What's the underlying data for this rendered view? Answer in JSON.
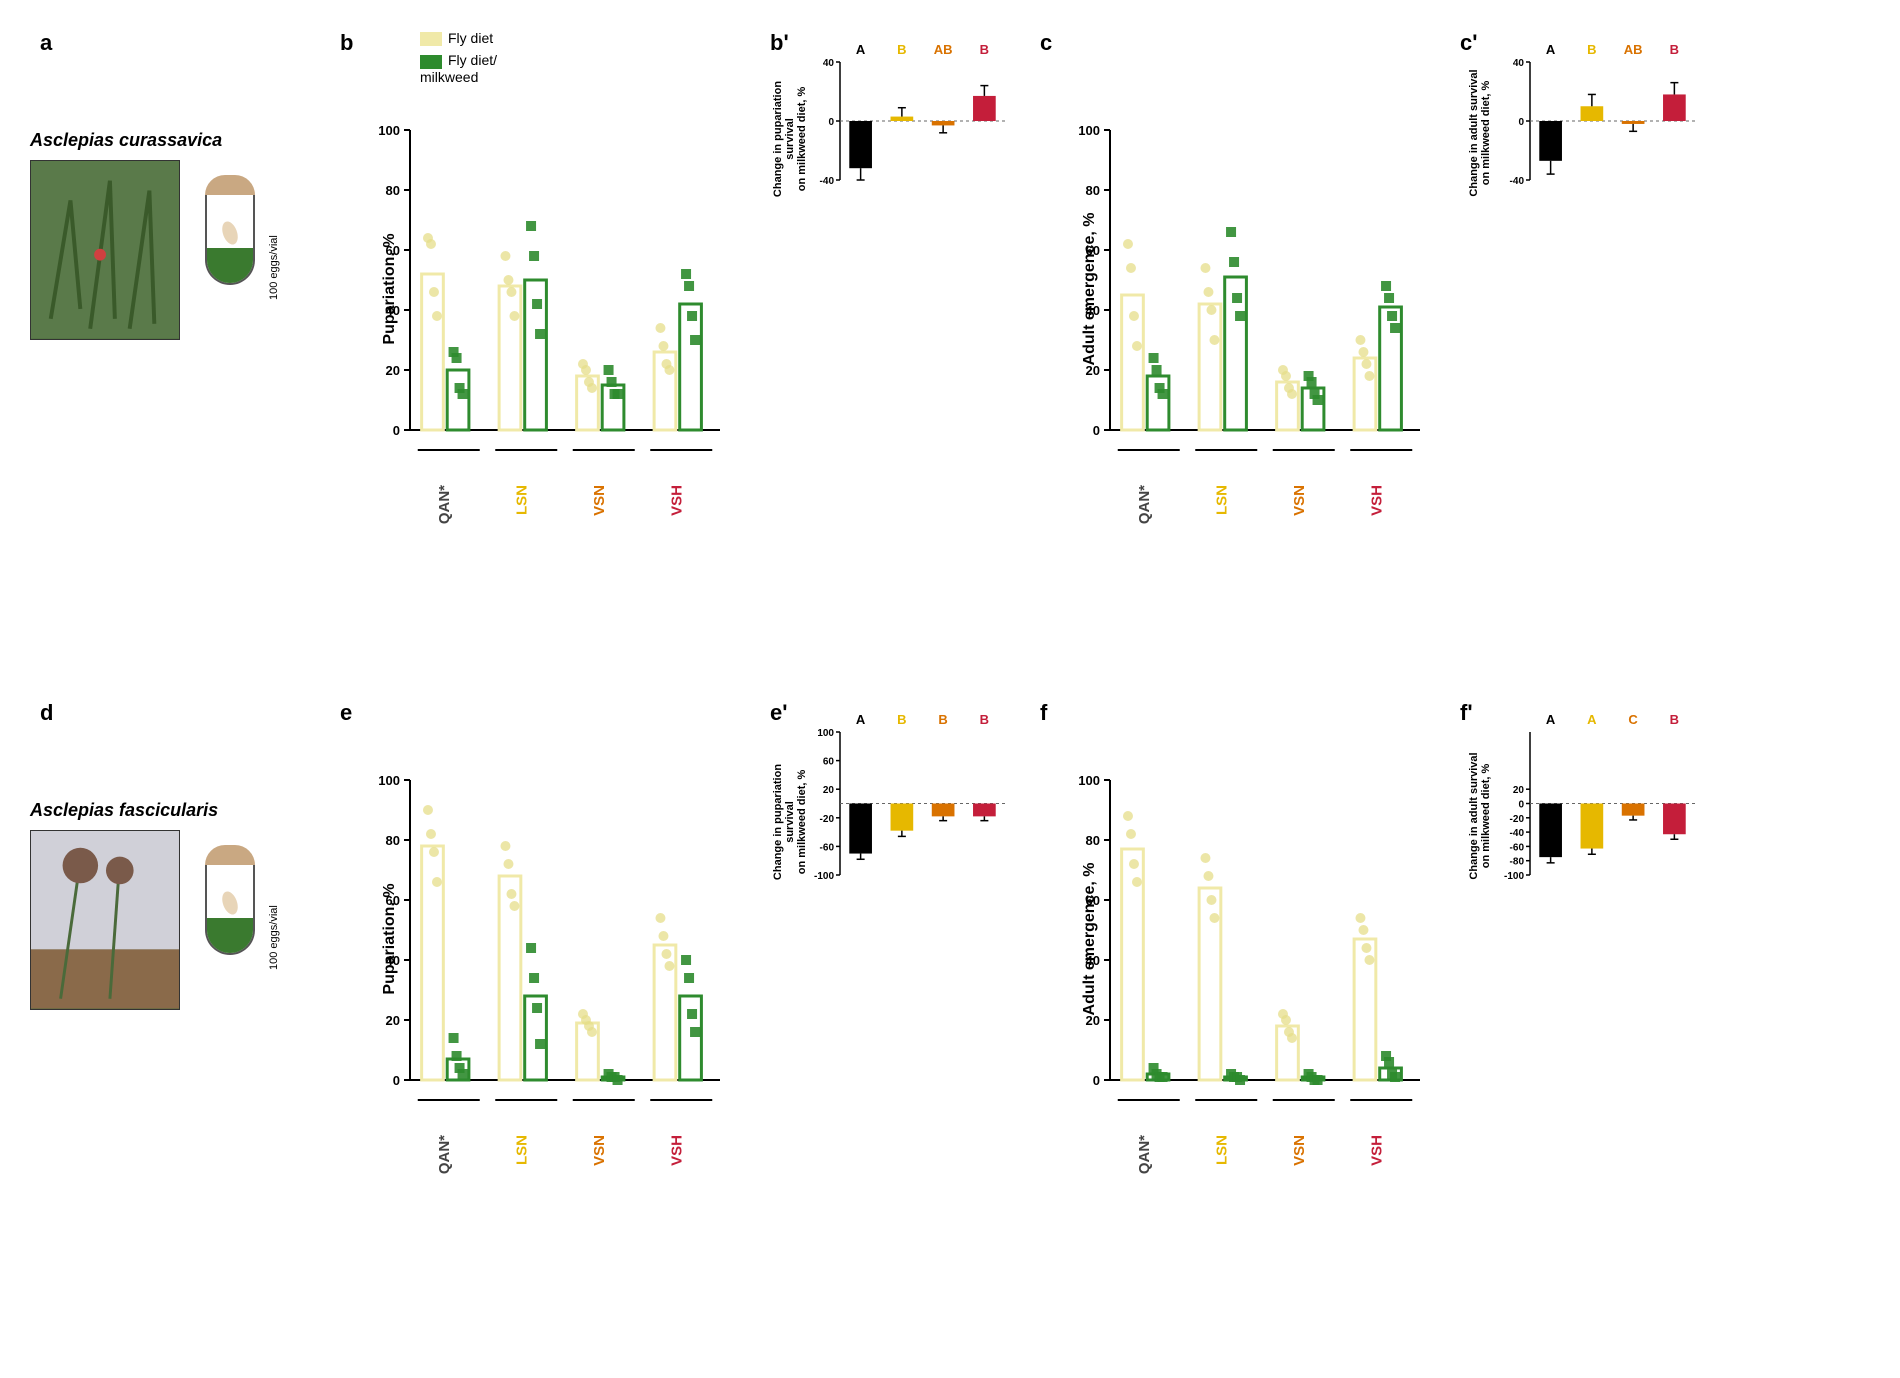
{
  "figure": {
    "species1": "Asclepias curassavica",
    "species2": "Asclepias fascicularis",
    "vial_label": "100 eggs/vial",
    "legend": {
      "fly_diet": "Fly diet",
      "fly_diet_milkweed": "Fly diet/\nmilkweed"
    },
    "panels": {
      "a": "a",
      "b": "b",
      "bp": "b'",
      "c": "c",
      "cp": "c'",
      "d": "d",
      "e": "e",
      "ep": "e'",
      "f": "f",
      "fp": "f'"
    },
    "categories": [
      "QAN*",
      "LSN",
      "VSN",
      "VSH"
    ],
    "cat_colors": [
      "#444444",
      "#e6b800",
      "#d97200",
      "#c41e3a"
    ],
    "colors": {
      "fly_diet_bar": "#f0e9a8",
      "fly_diet_pt": "#e6dd8a",
      "milkweed_bar": "#2e8b2e",
      "milkweed_pt": "#2e8b2e",
      "axis": "#000000"
    },
    "b": {
      "ylabel": "Pupariation, %",
      "ylim": [
        0,
        100
      ],
      "yticks": [
        0,
        20,
        40,
        60,
        80,
        100
      ],
      "fly_diet": [
        52,
        48,
        18,
        26
      ],
      "milkweed": [
        20,
        50,
        15,
        42
      ],
      "fly_pts": [
        [
          64,
          62,
          46,
          38
        ],
        [
          58,
          50,
          46,
          38
        ],
        [
          22,
          20,
          16,
          14
        ],
        [
          34,
          28,
          22,
          20
        ]
      ],
      "mw_pts": [
        [
          26,
          24,
          14,
          12
        ],
        [
          68,
          58,
          42,
          32
        ],
        [
          20,
          16,
          12,
          12
        ],
        [
          52,
          48,
          38,
          30
        ]
      ]
    },
    "bp": {
      "ylabel": "Change in pupariation survival\non milkweed diet, %",
      "ylim": [
        -40,
        40
      ],
      "yticks": [
        -40,
        0,
        40
      ],
      "vals": [
        -32,
        3,
        -3,
        17
      ],
      "errs": [
        8,
        6,
        5,
        7
      ],
      "letters": [
        "A",
        "B",
        "AB",
        "B"
      ]
    },
    "c": {
      "ylabel": "Adult emergence, %",
      "ylim": [
        0,
        100
      ],
      "yticks": [
        0,
        20,
        40,
        60,
        80,
        100
      ],
      "fly_diet": [
        45,
        42,
        16,
        24
      ],
      "milkweed": [
        18,
        51,
        14,
        41
      ],
      "fly_pts": [
        [
          62,
          54,
          38,
          28
        ],
        [
          54,
          46,
          40,
          30
        ],
        [
          20,
          18,
          14,
          12
        ],
        [
          30,
          26,
          22,
          18
        ]
      ],
      "mw_pts": [
        [
          24,
          20,
          14,
          12
        ],
        [
          66,
          56,
          44,
          38
        ],
        [
          18,
          16,
          12,
          10
        ],
        [
          48,
          44,
          38,
          34
        ]
      ]
    },
    "cp": {
      "ylabel": "Change in adult survival\non milkweed diet, %",
      "ylim": [
        -40,
        40
      ],
      "yticks": [
        -40,
        0,
        40
      ],
      "vals": [
        -27,
        10,
        -2,
        18
      ],
      "errs": [
        9,
        8,
        5,
        8
      ],
      "letters": [
        "A",
        "B",
        "AB",
        "B"
      ]
    },
    "e": {
      "ylabel": "Pupariation, %",
      "ylim": [
        0,
        100
      ],
      "yticks": [
        0,
        20,
        40,
        60,
        80,
        100
      ],
      "fly_diet": [
        78,
        68,
        19,
        45
      ],
      "milkweed": [
        7,
        28,
        1,
        28
      ],
      "fly_pts": [
        [
          90,
          82,
          76,
          66
        ],
        [
          78,
          72,
          62,
          58
        ],
        [
          22,
          20,
          18,
          16
        ],
        [
          54,
          48,
          42,
          38
        ]
      ],
      "mw_pts": [
        [
          14,
          8,
          4,
          2
        ],
        [
          44,
          34,
          24,
          12
        ],
        [
          2,
          1,
          1,
          0
        ],
        [
          40,
          34,
          22,
          16
        ]
      ]
    },
    "ep": {
      "ylabel": "Change in pupariation survival\non milkweed diet, %",
      "ylim": [
        -100,
        100
      ],
      "yticks": [
        -100,
        -60,
        -20,
        20,
        60,
        100
      ],
      "vals": [
        -70,
        -38,
        -18,
        -18
      ],
      "errs": [
        8,
        8,
        6,
        6
      ],
      "letters": [
        "A",
        "B",
        "B",
        "B"
      ]
    },
    "f": {
      "ylabel": "Adult emergence, %",
      "ylim": [
        0,
        100
      ],
      "yticks": [
        0,
        20,
        40,
        60,
        80,
        100
      ],
      "fly_diet": [
        77,
        64,
        18,
        47
      ],
      "milkweed": [
        2,
        1,
        1,
        4
      ],
      "fly_pts": [
        [
          88,
          82,
          72,
          66
        ],
        [
          74,
          68,
          60,
          54
        ],
        [
          22,
          20,
          16,
          14
        ],
        [
          54,
          50,
          44,
          40
        ]
      ],
      "mw_pts": [
        [
          4,
          2,
          1,
          1
        ],
        [
          2,
          1,
          1,
          0
        ],
        [
          2,
          1,
          0,
          0
        ],
        [
          8,
          6,
          2,
          1
        ]
      ]
    },
    "fp": {
      "ylabel": "Change in adult survival\non milkweed diet, %",
      "ylim": [
        -100,
        100
      ],
      "yticks": [
        -100,
        -80,
        -60,
        -40,
        -20,
        0,
        20
      ],
      "vals": [
        -75,
        -63,
        -17,
        -43
      ],
      "errs": [
        8,
        8,
        6,
        7
      ],
      "letters": [
        "A",
        "A",
        "C",
        "B"
      ]
    }
  }
}
